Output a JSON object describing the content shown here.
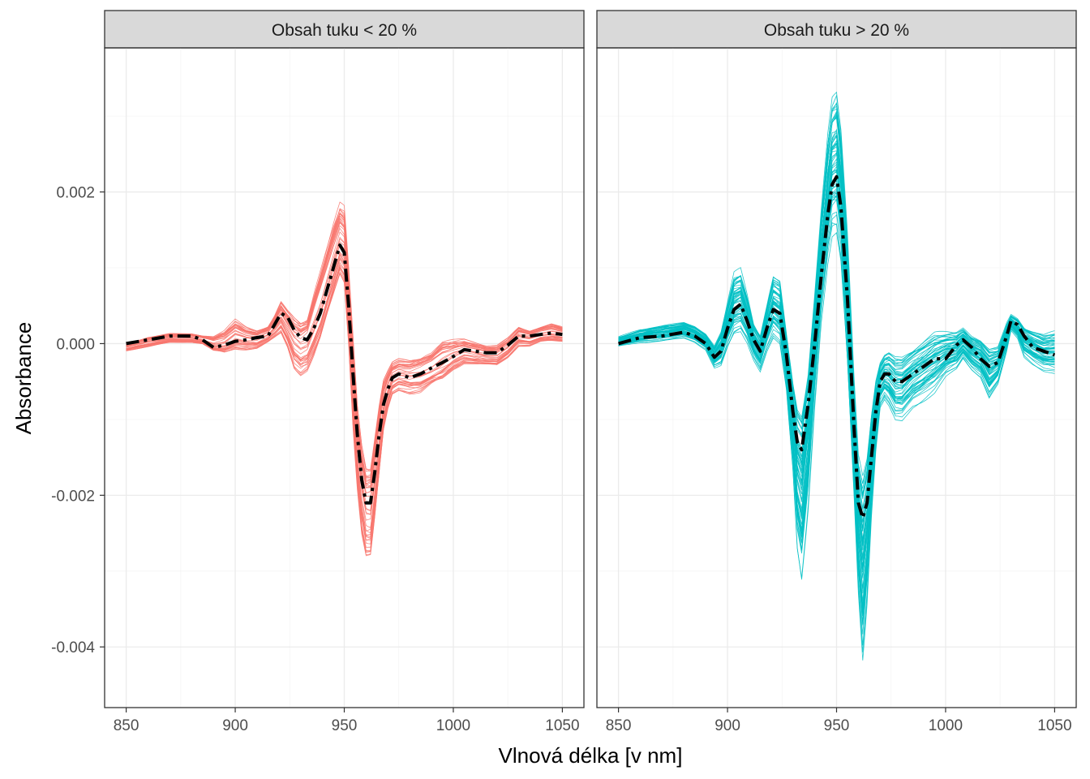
{
  "chart_data": {
    "type": "line",
    "xlabel": "Vlnová délka [v nm]",
    "ylabel": "Absorbance",
    "xlim": [
      850,
      1050
    ],
    "ylim": [
      -0.0048,
      0.0039
    ],
    "x_ticks": [
      850,
      900,
      950,
      1000,
      1050
    ],
    "x_tick_labels": [
      "850",
      "900",
      "950",
      "1000",
      "1050"
    ],
    "y_ticks": [
      0.002,
      0.0,
      -0.002,
      -0.004
    ],
    "y_tick_labels": [
      "0.002",
      "0.000",
      "-0.002",
      "-0.004"
    ],
    "grid": true,
    "legend": "none",
    "panels": [
      {
        "strip": "Obsah tuku < 20 %",
        "color": "#F8766D",
        "n_spectra": 40,
        "mean": {
          "x": [
            850,
            860,
            870,
            880,
            885,
            890,
            895,
            900,
            905,
            910,
            915,
            918,
            921,
            924,
            927,
            930,
            933,
            936,
            939,
            942,
            945,
            948,
            950,
            952,
            954,
            956,
            958,
            960,
            962,
            964,
            966,
            968,
            970,
            972,
            975,
            980,
            985,
            990,
            995,
            1000,
            1005,
            1010,
            1015,
            1020,
            1025,
            1030,
            1035,
            1040,
            1045,
            1050
          ],
          "y": [
            0.0,
            5e-05,
            0.0001,
            0.0001,
            5e-05,
            -5e-05,
            -2e-05,
            3e-05,
            5e-05,
            8e-05,
            0.0001,
            0.00025,
            0.0004,
            0.00035,
            0.00018,
            8e-05,
            5e-05,
            0.0002,
            0.0004,
            0.0007,
            0.001,
            0.0013,
            0.0012,
            0.0005,
            -0.0004,
            -0.0012,
            -0.0018,
            -0.0021,
            -0.0021,
            -0.0017,
            -0.0012,
            -0.0008,
            -0.0006,
            -0.00045,
            -0.0004,
            -0.00045,
            -0.0004,
            -0.00032,
            -0.00025,
            -0.00017,
            -8e-05,
            -0.0001,
            -0.00012,
            -0.00012,
            -2e-05,
            0.0001,
            0.0001,
            0.00012,
            0.00014,
            0.00012
          ]
        },
        "envelope_max": [
          0.0,
          0.0001,
          0.00015,
          0.00015,
          0.00012,
          0.00012,
          0.0002,
          0.00035,
          0.00025,
          0.0002,
          0.00025,
          0.0004,
          0.0006,
          0.0005,
          0.00045,
          0.0004,
          0.00045,
          0.0008,
          0.0011,
          0.0014,
          0.0017,
          0.00195,
          0.0019,
          0.0011,
          0.0002,
          -0.0007,
          -0.0012,
          -0.0015,
          -0.0015,
          -0.0011,
          -0.0007,
          -0.0004,
          -0.0003,
          -0.0002,
          -0.00015,
          -0.00015,
          -0.0001,
          -5e-05,
          0.0001,
          0.0001,
          0.0001,
          5e-05,
          0.0,
          0.0,
          0.0001,
          0.00025,
          0.0002,
          0.00025,
          0.0003,
          0.00025
        ],
        "envelope_min": [
          -0.0001,
          -5e-05,
          0.0,
          0.0,
          -2e-05,
          -0.00012,
          -0.00015,
          -0.0001,
          -0.0001,
          -8e-05,
          0.0,
          5e-05,
          0.0001,
          -0.0001,
          -0.0004,
          -0.0005,
          -0.00045,
          -0.0003,
          -0.0001,
          0.0002,
          0.0005,
          0.0008,
          0.0007,
          -0.0001,
          -0.0012,
          -0.002,
          -0.0026,
          -0.0029,
          -0.0029,
          -0.0024,
          -0.0018,
          -0.0012,
          -0.0009,
          -0.0007,
          -0.00065,
          -0.0007,
          -0.0007,
          -0.0006,
          -0.00055,
          -0.0004,
          -0.0003,
          -0.0003,
          -0.0003,
          -0.0003,
          -0.0002,
          -5e-05,
          -5e-05,
          0.0,
          0.0,
          0.0
        ]
      },
      {
        "strip": "Obsah tuku > 20 %",
        "color": "#00BFC4",
        "n_spectra": 60,
        "mean": {
          "x": [
            850,
            860,
            870,
            880,
            885,
            890,
            894,
            897,
            900,
            903,
            906,
            909,
            912,
            915,
            918,
            921,
            924,
            927,
            930,
            932,
            934,
            937,
            940,
            943,
            946,
            948,
            950,
            952,
            955,
            958,
            960,
            962,
            964,
            966,
            968,
            970,
            972,
            974,
            977,
            980,
            985,
            990,
            995,
            1000,
            1005,
            1008,
            1012,
            1016,
            1020,
            1024,
            1028,
            1030,
            1033,
            1036,
            1040,
            1045,
            1050
          ],
          "y": [
            0.0,
            8e-05,
            0.0001,
            0.00015,
            0.0001,
            0.0,
            -0.00018,
            -0.0001,
            0.0002,
            0.00045,
            0.00052,
            0.0003,
            5e-05,
            -0.0001,
            0.0002,
            0.00045,
            0.0004,
            -0.00015,
            -0.0009,
            -0.0013,
            -0.0014,
            -0.0008,
            0.0,
            0.0009,
            0.0017,
            0.0021,
            0.0022,
            0.0018,
            0.0006,
            -0.0011,
            -0.0021,
            -0.0023,
            -0.0021,
            -0.0015,
            -0.0009,
            -0.0005,
            -0.0004,
            -0.0004,
            -0.0005,
            -0.0005,
            -0.0004,
            -0.0003,
            -0.0002,
            -0.0002,
            -2e-05,
            5e-05,
            -5e-05,
            -0.0002,
            -0.0003,
            -0.00025,
            0.0001,
            0.0003,
            0.00025,
            0.0001,
            -5e-05,
            -0.0001,
            -0.00015
          ]
        },
        "envelope_max": [
          0.0001,
          0.0002,
          0.00025,
          0.0003,
          0.00025,
          0.00015,
          0.0,
          0.0002,
          0.0006,
          0.001,
          0.00105,
          0.0007,
          0.0003,
          0.00015,
          0.00055,
          0.00095,
          0.0009,
          0.0002,
          -0.0004,
          -0.00065,
          -0.0007,
          -0.0002,
          0.0008,
          0.0019,
          0.0029,
          0.0034,
          0.0035,
          0.003,
          0.0016,
          -0.0003,
          -0.0013,
          -0.0015,
          -0.0013,
          -0.0008,
          -0.0004,
          -0.0002,
          -0.0001,
          -5e-05,
          -0.0001,
          -0.0001,
          0.0,
          0.0001,
          0.0002,
          0.0002,
          0.0002,
          0.00025,
          0.00015,
          0.0001,
          0.0,
          0.0,
          0.0003,
          0.0004,
          0.00035,
          0.00025,
          0.0002,
          0.00015,
          0.0002
        ],
        "envelope_min": [
          -5e-05,
          0.0,
          2e-05,
          5e-05,
          0.0,
          -0.0001,
          -0.00035,
          -0.00035,
          -0.00015,
          0.0,
          5e-05,
          -5e-05,
          -0.00025,
          -0.0004,
          -0.00015,
          0.0,
          -0.0001,
          -0.0007,
          -0.0018,
          -0.0029,
          -0.0033,
          -0.0023,
          -0.0009,
          0.0002,
          0.0009,
          0.0012,
          0.0012,
          0.0008,
          -0.0005,
          -0.0022,
          -0.0035,
          -0.0044,
          -0.0036,
          -0.0024,
          -0.0015,
          -0.0009,
          -0.0008,
          -0.0009,
          -0.0011,
          -0.0011,
          -0.0009,
          -0.0008,
          -0.0007,
          -0.0005,
          -0.0004,
          -0.00025,
          -0.0004,
          -0.0005,
          -0.0008,
          -0.0006,
          -0.00015,
          0.00015,
          5e-05,
          -0.0002,
          -0.0003,
          -0.0004,
          -0.00045
        ]
      }
    ]
  }
}
